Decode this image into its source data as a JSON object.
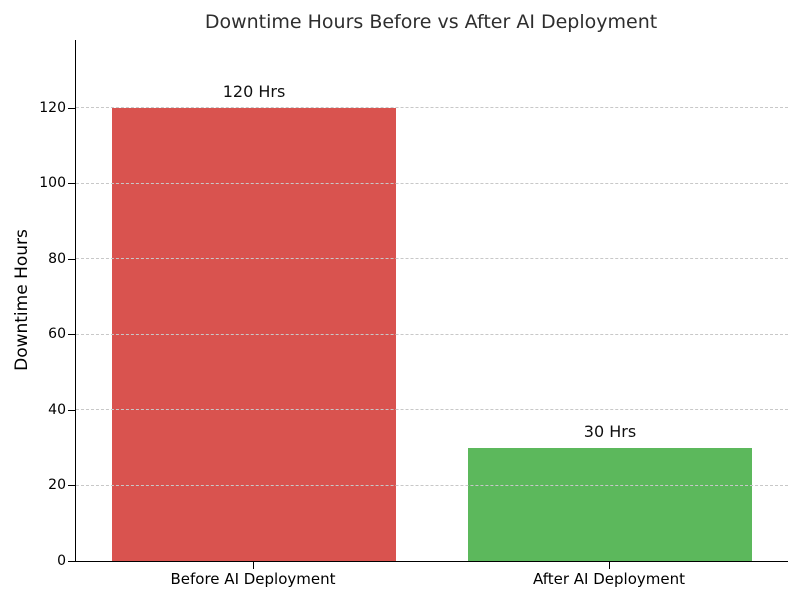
{
  "chart_data": {
    "type": "bar",
    "title": "Downtime Hours Before vs After AI Deployment",
    "ylabel": "Downtime Hours",
    "xlabel": "",
    "categories": [
      "Before AI Deployment",
      "After AI Deployment"
    ],
    "values": [
      120,
      30
    ],
    "bar_labels": [
      "120 Hrs",
      "30 Hrs"
    ],
    "bar_colors": [
      "#d9534f",
      "#5cb85c"
    ],
    "yticks": [
      0,
      20,
      40,
      60,
      80,
      100,
      120
    ],
    "ylim": [
      0,
      138
    ],
    "grid": {
      "axis": "y",
      "style": "dashed",
      "color": "#c8c8c8"
    },
    "legend": "none",
    "bar_width_fraction": 0.8
  },
  "figure": {
    "background": "#ffffff",
    "title_color": "#2e2e2e",
    "text_color": "#000000",
    "axis_color": "#000000"
  }
}
